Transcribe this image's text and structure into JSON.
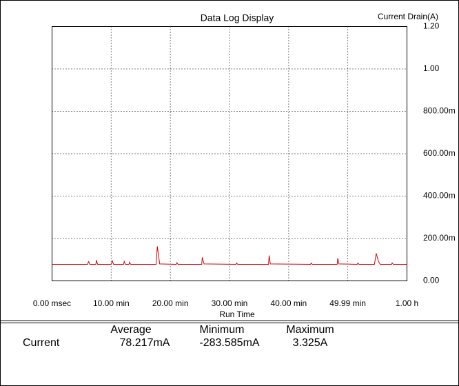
{
  "chart_data": {
    "type": "line",
    "title": "Data Log Display",
    "y_label": "Current Drain(A)",
    "x_label": "Run Time",
    "color": "#d40000",
    "grid": true,
    "x": [
      0,
      6.0,
      6.2,
      6.4,
      7.4,
      7.5,
      7.7,
      10.0,
      10.2,
      10.4,
      12.1,
      12.2,
      12.4,
      13.0,
      13.1,
      13.3,
      17.6,
      17.8,
      18.2,
      21.0,
      21.1,
      21.3,
      25.3,
      25.4,
      25.7,
      31.1,
      31.2,
      31.4,
      36.6,
      36.7,
      36.9,
      43.7,
      43.8,
      44.0,
      48.2,
      48.3,
      48.5,
      51.6,
      51.7,
      51.9,
      54.5,
      54.8,
      55.2,
      55.5,
      57.4,
      57.5,
      57.7,
      60
    ],
    "values": [
      0.078,
      0.078,
      0.091,
      0.078,
      0.078,
      0.098,
      0.078,
      0.078,
      0.094,
      0.078,
      0.078,
      0.092,
      0.078,
      0.078,
      0.088,
      0.078,
      0.078,
      0.163,
      0.08,
      0.078,
      0.086,
      0.078,
      0.078,
      0.111,
      0.08,
      0.078,
      0.084,
      0.078,
      0.078,
      0.12,
      0.08,
      0.078,
      0.084,
      0.078,
      0.078,
      0.107,
      0.08,
      0.078,
      0.084,
      0.078,
      0.078,
      0.13,
      0.09,
      0.078,
      0.078,
      0.085,
      0.078,
      0.078
    ],
    "xlim": [
      0,
      60
    ],
    "xticks": [
      {
        "value": 0,
        "label": "0.00 msec"
      },
      {
        "value": 10,
        "label": "10.00 min"
      },
      {
        "value": 20,
        "label": "20.00 min"
      },
      {
        "value": 30,
        "label": "30.00 min"
      },
      {
        "value": 40,
        "label": "40.00 min"
      },
      {
        "value": 49.99,
        "label": "49.99 min"
      },
      {
        "value": 60,
        "label": "1.00 h"
      }
    ],
    "ylim": [
      0,
      1.2
    ],
    "yticks": [
      {
        "value": 0,
        "label": "0.00"
      },
      {
        "value": 0.2,
        "label": "200.00m"
      },
      {
        "value": 0.4,
        "label": "400.00m"
      },
      {
        "value": 0.6,
        "label": "600.00m"
      },
      {
        "value": 0.8,
        "label": "800.00m"
      },
      {
        "value": 1.0,
        "label": "1.00"
      },
      {
        "value": 1.2,
        "label": "1.20"
      }
    ]
  },
  "stats": {
    "headers": [
      "Average",
      "Minimum",
      "Maximum"
    ],
    "rows": [
      [
        "Current",
        "78.217mA",
        "-283.585mA",
        "3.325A"
      ]
    ]
  }
}
